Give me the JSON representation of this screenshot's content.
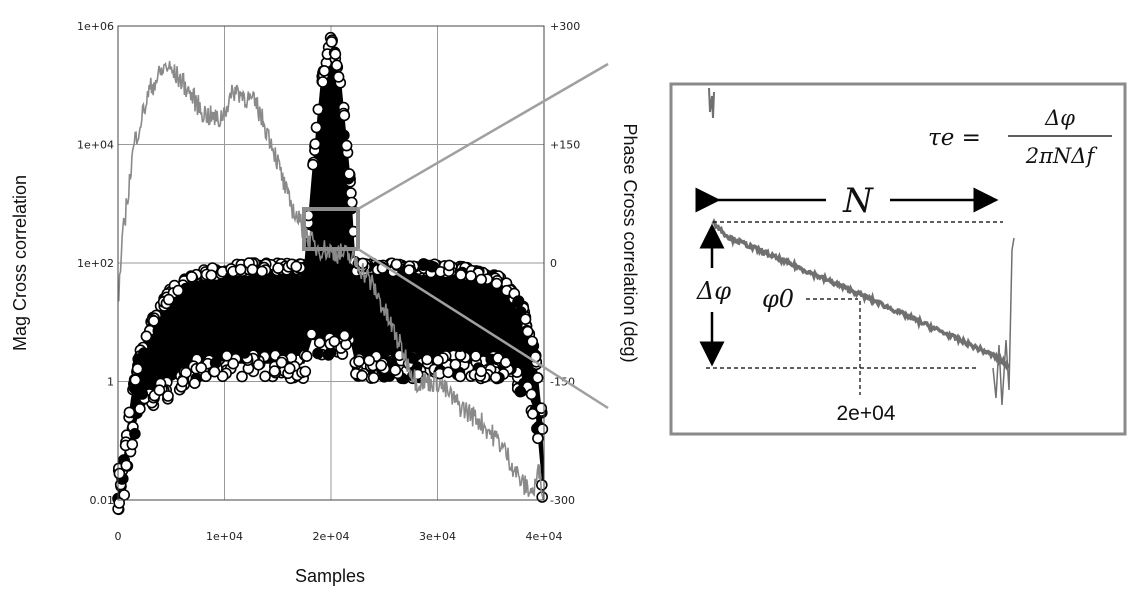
{
  "chart_data": [
    {
      "type": "scatter",
      "xlabel": "Samples",
      "ylabel": "Mag Cross correlation",
      "y2label": "Phase Cross correlation (deg)",
      "x_ticks": [
        "0",
        "1e+04",
        "2e+04",
        "3e+04",
        "4e+04"
      ],
      "x_tick_values": [
        0,
        10000,
        20000,
        30000,
        40000
      ],
      "xlim": [
        0,
        40000
      ],
      "y_ticks": [
        "0.01",
        "1",
        "1e+02",
        "1e+04",
        "1e+06"
      ],
      "y_tick_values": [
        0.01,
        1,
        100,
        10000,
        1000000
      ],
      "y_scale": "log",
      "ylim": [
        0.01,
        1000000
      ],
      "y2_ticks": [
        "-300",
        "-150",
        "0",
        "+150",
        "+300"
      ],
      "y2_tick_values": [
        -300,
        -150,
        0,
        150,
        300
      ],
      "y2lim": [
        -300,
        300
      ],
      "grid": true,
      "series": [
        {
          "style": "black open circles (magnitude, left log axis)",
          "color": "#000000",
          "x": [
            0,
            300,
            700,
            1200,
            2000,
            3000,
            5000,
            8000,
            12000,
            17500,
            18200,
            19000,
            20000,
            21000,
            21800,
            22300,
            24000,
            28000,
            32000,
            36000,
            38000,
            39200,
            39800,
            40000
          ],
          "y": [
            0.05,
            0.02,
            0.1,
            0.5,
            3,
            10,
            40,
            80,
            100,
            100,
            3000,
            100000,
            800000,
            100000,
            3000,
            100,
            100,
            100,
            90,
            60,
            20,
            3,
            0.3,
            0.03
          ],
          "y_lower": [
            0.01,
            0.01,
            0.03,
            0.1,
            0.3,
            0.5,
            1,
            2,
            2,
            2,
            5,
            5,
            5,
            5,
            5,
            2,
            2,
            2,
            2,
            2,
            1,
            0.3,
            0.02,
            0.01
          ]
        },
        {
          "style": "gray line (phase, right axis)",
          "color": "#8a8a8a",
          "x": [
            0,
            500,
            1500,
            3000,
            4500,
            6000,
            8000,
            9500,
            11000,
            13000,
            14500,
            16000,
            17500,
            18500,
            20000,
            21500,
            22500,
            24000,
            26000,
            28000,
            30000,
            32000,
            34000,
            36000,
            38000,
            39000,
            39600,
            40000
          ],
          "y": [
            -50,
            40,
            150,
            220,
            250,
            230,
            190,
            180,
            220,
            200,
            150,
            80,
            40,
            20,
            15,
            10,
            0,
            -30,
            -90,
            -150,
            -150,
            -180,
            -200,
            -230,
            -280,
            -290,
            -260,
            -300
          ]
        }
      ]
    },
    {
      "type": "line",
      "panel": "zoom inset",
      "color": "#707070",
      "x": [
        0,
        0.05,
        0.5,
        0.95,
        1.0
      ],
      "y": [
        0,
        -0.1,
        -0.5,
        -0.92,
        -1.0
      ],
      "annotations": {
        "N_label": "N",
        "delta_phi_label": "Δφ",
        "phi0_label": "φ0",
        "x_marker": "2e+04",
        "formula_lhs": "τe =",
        "formula_numerator": "Δφ",
        "formula_denominator": "2πNΔf"
      }
    }
  ]
}
